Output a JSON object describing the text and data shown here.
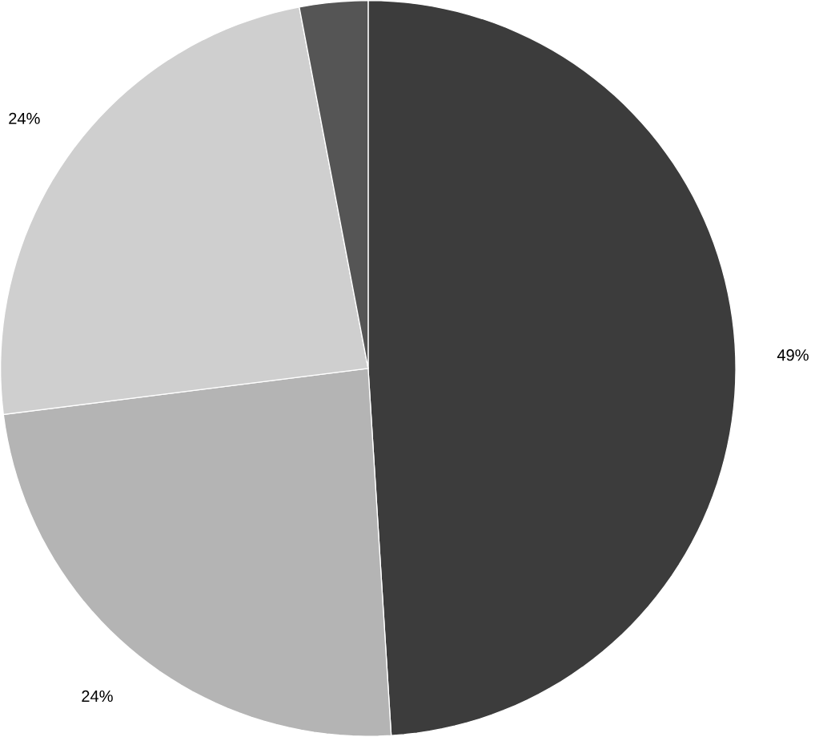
{
  "chart_data": {
    "type": "pie",
    "categories": [
      null,
      null,
      null,
      null
    ],
    "values": [
      49,
      24,
      24,
      3
    ],
    "colors": [
      "#3c3c3c",
      "#b4b4b4",
      "#cfcfcf",
      "#555555"
    ],
    "value_labels": [
      "49%",
      "24%",
      "24%",
      null
    ]
  }
}
